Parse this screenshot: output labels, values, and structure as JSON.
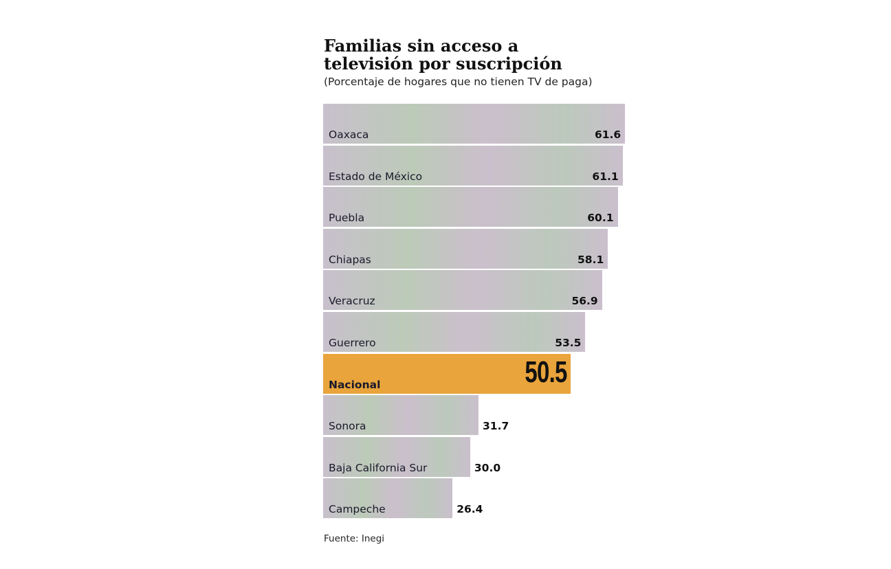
{
  "chart_data": {
    "type": "bar",
    "orientation": "horizontal",
    "title": "Familias sin acceso a televisión por suscripción",
    "subtitle": "(Porcentaje de hogares que no tienen TV de paga)",
    "source": "Fuente: Inegi",
    "categories": [
      "Oaxaca",
      "Estado de México",
      "Puebla",
      "Chiapas",
      "Veracruz",
      "Guerrero",
      "Nacional",
      "Sonora",
      "Baja California Sur",
      "Campeche"
    ],
    "values": [
      61.6,
      61.1,
      60.1,
      58.1,
      56.9,
      53.5,
      50.5,
      31.7,
      30.0,
      26.4
    ],
    "value_labels": [
      "61.6",
      "61.1",
      "60.1",
      "58.1",
      "56.9",
      "53.5",
      "50.5",
      "31.7",
      "30.0",
      "26.4"
    ],
    "highlight": "Nacional",
    "colors": {
      "bar": "#c6c2c8",
      "highlight": "#e9a43b"
    },
    "grid": false
  }
}
